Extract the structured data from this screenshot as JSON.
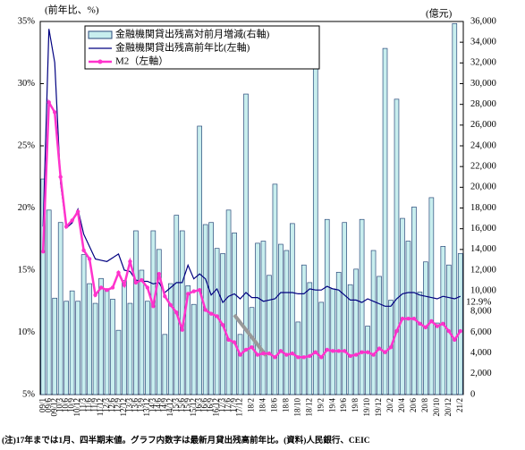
{
  "chart_data": {
    "type": "bar-line",
    "y_label": "(前年比、%)",
    "y2_label": "(億元)",
    "annotation": "12.9%",
    "footnote": "(注)17年までは1月、四半期末値。グラフ内数字は最新月貸出残高前年比。(資料)人民銀行、CEIC",
    "categories": [
      "09/1",
      "09/6",
      "09/12",
      "10/3",
      "10/6",
      "10/9",
      "10/12",
      "11/3",
      "11/6",
      "11/9",
      "11/12",
      "12/3",
      "12/6",
      "12/9",
      "12/12",
      "13/3",
      "13/6",
      "13/9",
      "13/12",
      "14/3",
      "14/6",
      "14/9",
      "14/12",
      "15/3",
      "15/6",
      "15/9",
      "15/12",
      "16/3",
      "16/6",
      "16/9",
      "16/12",
      "17/3",
      "17/6",
      "17/9",
      "17/12",
      null,
      "18/2",
      null,
      "18/4",
      null,
      "18/6",
      null,
      "18/8",
      null,
      "18/10",
      null,
      "18/12",
      null,
      "19/2",
      null,
      "19/4",
      null,
      "19/6",
      null,
      "19/8",
      null,
      "19/10",
      null,
      "19/12",
      null,
      "20/2",
      null,
      "20/4",
      null,
      "20/6",
      null,
      "20/8",
      null,
      "20/10",
      null,
      "20/12",
      null,
      "21/2"
    ],
    "series": [
      {
        "name": "金融機関貸出残高対前月増減(右軸)",
        "type": "bar",
        "axis": "y2",
        "color": "#c8eeee",
        "values": [
          20800,
          17800,
          9300,
          16600,
          9000,
          10000,
          9000,
          13500,
          10700,
          8800,
          11200,
          10100,
          9200,
          6200,
          11000,
          8800,
          15800,
          12000,
          9000,
          15800,
          14000,
          5800,
          10700,
          17300,
          15800,
          10500,
          8700,
          25900,
          16400,
          16600,
          14100,
          13600,
          17800,
          15600,
          5800,
          29000,
          8400,
          14600,
          14800,
          11500,
          20300,
          14500,
          13900,
          16500,
          7000,
          12500,
          10800,
          32300,
          8900,
          16900,
          10200,
          11800,
          16600,
          10600,
          12100,
          16900,
          6600,
          13900,
          11400,
          33400,
          9100,
          28500,
          17000,
          14800,
          18100,
          9900,
          12800,
          19000,
          6900,
          14300,
          12500,
          35800,
          13600
        ]
      },
      {
        "name": "金融機関貸出残高前年比(左軸)",
        "type": "line",
        "color": "#000080",
        "values": [
          18.5,
          34.4,
          31.7,
          22,
          18.4,
          18.8,
          19.9,
          17.9,
          16.9,
          15.9,
          15.8,
          15.7,
          16,
          16.3,
          15,
          14.9,
          14.2,
          14.1,
          14.1,
          13.9,
          14,
          13.2,
          13.6,
          14,
          14,
          15.4,
          14.3,
          14.7,
          14.3,
          13,
          13.5,
          12.4,
          12.9,
          13.1,
          12.7,
          13.2,
          12.8,
          12.8,
          12.5,
          12.6,
          12.7,
          13.2,
          13.2,
          13.2,
          13.1,
          13.1,
          13.5,
          13.4,
          13.4,
          13.7,
          13.5,
          13.4,
          13,
          12.6,
          12.6,
          12.4,
          12.7,
          12.5,
          12.3,
          12.1,
          12.1,
          12.7,
          13.1,
          13.2,
          13.2,
          13,
          12.9,
          12.8,
          12.7,
          12.9,
          12.8,
          12.7,
          12.9
        ]
      },
      {
        "name": "M2（左軸）",
        "type": "line",
        "color": "#ff33cc",
        "marker": true,
        "values": [
          16.5,
          28.5,
          27.7,
          22.5,
          18.5,
          19,
          19.7,
          16.6,
          15.9,
          13,
          13.6,
          13.4,
          13.6,
          14.8,
          13.8,
          15.7,
          14,
          14.2,
          13.6,
          12.1,
          14.7,
          12.9,
          12.2,
          11.6,
          10.2,
          13.1,
          13.3,
          13.4,
          11.8,
          11.5,
          11.3,
          10.6,
          9.4,
          9.2,
          8.2,
          8.6,
          8.8,
          8.2,
          8.3,
          8.3,
          8,
          8.5,
          8.2,
          8.3,
          8,
          8,
          8.1,
          8.4,
          8,
          8.6,
          8.5,
          8.5,
          8.5,
          8.1,
          8.2,
          8.4,
          8.4,
          8.2,
          8.7,
          8.4,
          8.8,
          10.1,
          11.1,
          11.1,
          11.1,
          10.7,
          10.4,
          10.9,
          10.5,
          10.7,
          10.1,
          9.4,
          10.1
        ]
      }
    ],
    "ylim": [
      5,
      35
    ],
    "yticks": [
      {
        "value": 5,
        "label": "5%"
      },
      {
        "value": 10,
        "label": "10%"
      },
      {
        "value": 15,
        "label": "15%"
      },
      {
        "value": 20,
        "label": "20%"
      },
      {
        "value": 25,
        "label": "25%"
      },
      {
        "value": 30,
        "label": "30%"
      },
      {
        "value": 35,
        "label": "35%"
      }
    ],
    "y2lim": [
      0,
      36000
    ],
    "y2ticks": [
      0,
      {
        "value": 2000,
        "label": "2,000"
      },
      {
        "value": 4000,
        "label": "4,000"
      },
      {
        "value": 6000,
        "label": "6,000"
      },
      {
        "value": 8000,
        "label": "8,000"
      },
      {
        "value": 10000,
        "label": "10,000"
      },
      {
        "value": 12000,
        "label": "12,000"
      },
      {
        "value": 14000,
        "label": "14,000"
      },
      {
        "value": 16000,
        "label": "16,000"
      },
      {
        "value": 18000,
        "label": "18,000"
      },
      {
        "value": 20000,
        "label": "20,000"
      },
      {
        "value": 22000,
        "label": "22,000"
      },
      {
        "value": 24000,
        "label": "24,000"
      },
      {
        "value": 26000,
        "label": "26,000"
      },
      {
        "value": 28000,
        "label": "28,000"
      },
      {
        "value": 30000,
        "label": "30,000"
      },
      {
        "value": 32000,
        "label": "32,000"
      },
      {
        "value": 34000,
        "label": "34,000"
      },
      {
        "value": 36000,
        "label": "36,000"
      }
    ],
    "legend": "top-left"
  }
}
